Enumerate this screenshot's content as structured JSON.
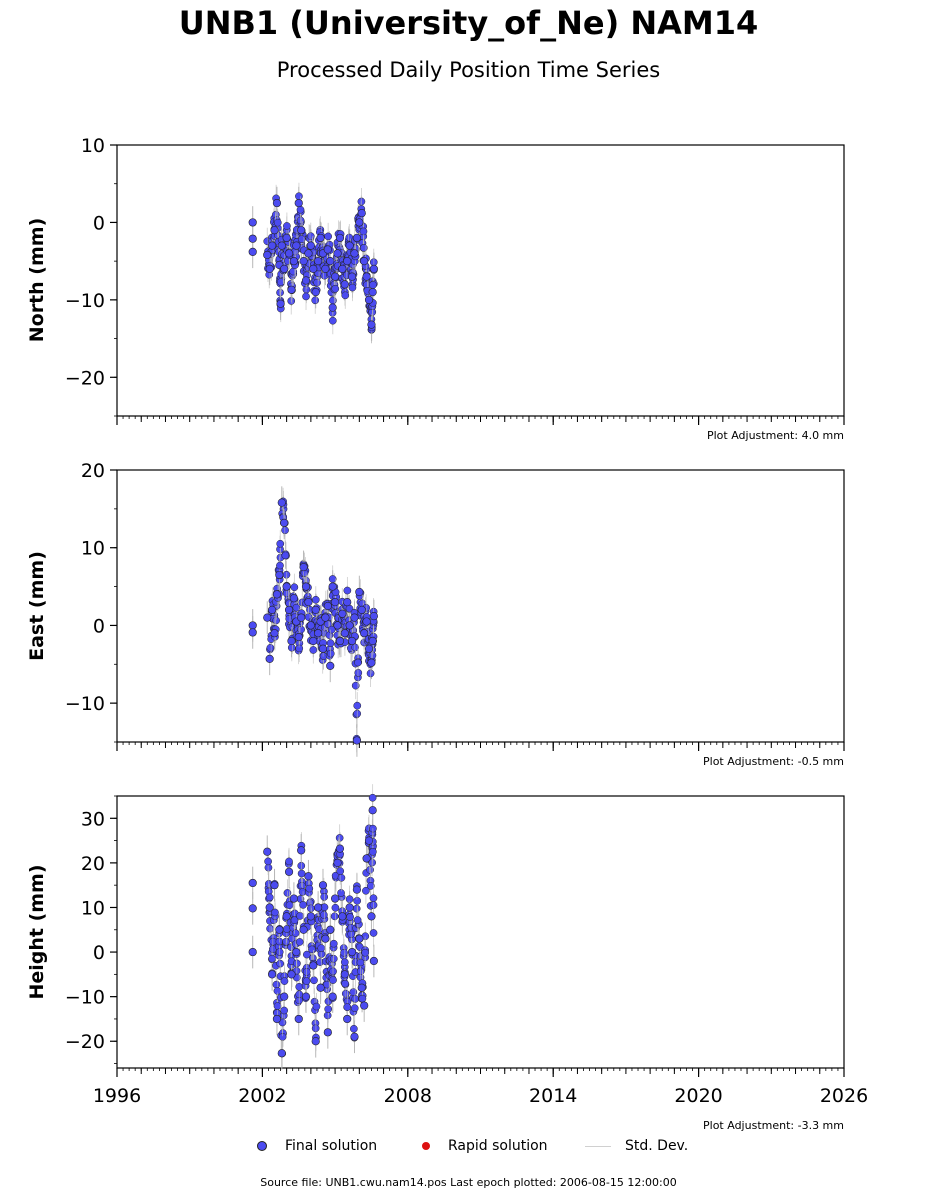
{
  "title": "UNB1 (University_of_Ne) NAM14",
  "subtitle": "Processed Daily Position Time Series",
  "footer": "Source file: UNB1.cwu.nam14.pos  Last epoch plotted: 2006-08-15 12:00:00",
  "legend": {
    "final": "Final solution",
    "rapid": "Rapid solution",
    "std": "Std. Dev."
  },
  "colors": {
    "final": "#4b4bf0",
    "rapid": "#dd1111",
    "std": "#b8b8b8"
  },
  "panels": [
    {
      "ylabel": "North (mm)",
      "adjustment": "Plot Adjustment: 4.0 mm"
    },
    {
      "ylabel": "East (mm)",
      "adjustment": "Plot Adjustment: -0.5 mm"
    },
    {
      "ylabel": "Height (mm)",
      "adjustment": "Plot Adjustment: -3.3 mm"
    }
  ],
  "chart_data": [
    {
      "type": "scatter",
      "ylabel": "North (mm)",
      "xlim": [
        1996,
        2026
      ],
      "ylim": [
        -25,
        10
      ],
      "xticks": [
        1996,
        2002,
        2008,
        2014,
        2020,
        2026
      ],
      "yticks": [
        -20,
        -10,
        0,
        10
      ],
      "series": [
        {
          "name": "Final solution",
          "x": [
            2001.6,
            2001.6,
            2001.6,
            2002.2,
            2002.3,
            2002.4,
            2002.5,
            2002.6,
            2002.7,
            2002.75,
            2002.8,
            2002.9,
            2003.0,
            2003.1,
            2003.2,
            2003.3,
            2003.4,
            2003.5,
            2003.6,
            2003.7,
            2003.8,
            2003.9,
            2004.0,
            2004.1,
            2004.2,
            2004.3,
            2004.4,
            2004.5,
            2004.6,
            2004.7,
            2004.8,
            2004.9,
            2005.0,
            2005.1,
            2005.2,
            2005.3,
            2005.4,
            2005.5,
            2005.6,
            2005.7,
            2005.8,
            2005.9,
            2006.0,
            2006.1,
            2006.2,
            2006.3,
            2006.4,
            2006.5,
            2006.55,
            2006.6
          ],
          "y": [
            0.0,
            -2.1,
            -3.8,
            -4.2,
            -6.0,
            -3.0,
            -1.0,
            2.5,
            -5.5,
            -10.5,
            -3.0,
            -6.0,
            -2.0,
            -4.0,
            -8.7,
            -5.0,
            -3.0,
            2.5,
            -1.0,
            -5.0,
            -7.5,
            -4.0,
            -3.0,
            -6.0,
            -9.0,
            -5.0,
            -2.0,
            -4.0,
            -6.0,
            -3.5,
            -5.0,
            -11.0,
            -7.0,
            -4.0,
            -2.0,
            -6.0,
            -8.0,
            -5.0,
            -3.0,
            -7.0,
            -4.0,
            -2.0,
            0.0,
            1.2,
            -5.0,
            -7.0,
            -10.0,
            -13.2,
            -9.0,
            -6.0
          ]
        }
      ]
    },
    {
      "type": "scatter",
      "ylabel": "East (mm)",
      "xlim": [
        1996,
        2026
      ],
      "ylim": [
        -15,
        20
      ],
      "xticks": [
        1996,
        2002,
        2008,
        2014,
        2020,
        2026
      ],
      "yticks": [
        -10,
        0,
        10,
        20
      ],
      "series": [
        {
          "name": "Final solution",
          "x": [
            2001.6,
            2001.6,
            2002.2,
            2002.3,
            2002.4,
            2002.5,
            2002.6,
            2002.7,
            2002.8,
            2002.9,
            2003.0,
            2003.1,
            2003.2,
            2003.3,
            2003.4,
            2003.5,
            2003.6,
            2003.7,
            2003.8,
            2003.9,
            2004.0,
            2004.1,
            2004.2,
            2004.3,
            2004.4,
            2004.5,
            2004.6,
            2004.7,
            2004.8,
            2004.9,
            2005.0,
            2005.1,
            2005.2,
            2005.3,
            2005.4,
            2005.5,
            2005.6,
            2005.7,
            2005.8,
            2005.9,
            2006.0,
            2006.1,
            2006.2,
            2006.3,
            2006.4,
            2006.5,
            2006.55,
            2006.6
          ],
          "y": [
            0.0,
            -0.9,
            1.0,
            -4.3,
            2.0,
            -1.0,
            4.0,
            6.5,
            15.8,
            13.2,
            5.0,
            2.0,
            -2.0,
            3.5,
            0.5,
            -1.5,
            1.0,
            7.5,
            5.0,
            3.0,
            0.0,
            -2.0,
            2.0,
            -1.0,
            0.5,
            -3.0,
            1.0,
            2.5,
            -5.2,
            5.0,
            3.0,
            0.0,
            -2.0,
            1.5,
            -1.0,
            3.0,
            0.0,
            -2.0,
            1.0,
            -14.8,
            4.3,
            2.0,
            -1.0,
            0.5,
            -3.0,
            -4.8,
            -2.0,
            1.2
          ]
        }
      ]
    },
    {
      "type": "scatter",
      "ylabel": "Height (mm)",
      "xlim": [
        1996,
        2026
      ],
      "ylim": [
        -26,
        35
      ],
      "xticks": [
        1996,
        2002,
        2008,
        2014,
        2020,
        2026
      ],
      "yticks": [
        -20,
        -10,
        0,
        10,
        20,
        30
      ],
      "series": [
        {
          "name": "Final solution",
          "x": [
            2001.6,
            2001.6,
            2001.6,
            2002.2,
            2002.3,
            2002.4,
            2002.5,
            2002.6,
            2002.7,
            2002.8,
            2002.9,
            2003.0,
            2003.1,
            2003.2,
            2003.3,
            2003.4,
            2003.5,
            2003.6,
            2003.7,
            2003.8,
            2003.9,
            2004.0,
            2004.1,
            2004.2,
            2004.3,
            2004.4,
            2004.5,
            2004.6,
            2004.7,
            2004.8,
            2004.9,
            2005.0,
            2005.1,
            2005.2,
            2005.3,
            2005.4,
            2005.5,
            2005.6,
            2005.7,
            2005.8,
            2005.9,
            2006.0,
            2006.1,
            2006.2,
            2006.3,
            2006.4,
            2006.5,
            2006.55,
            2006.6
          ],
          "y": [
            15.5,
            9.8,
            0.0,
            22.5,
            10.0,
            -5.0,
            15.0,
            -15.0,
            5.0,
            -22.7,
            -10.0,
            8.0,
            18.0,
            -5.0,
            12.0,
            0.0,
            -15.0,
            22.8,
            5.0,
            -10.0,
            17.0,
            8.0,
            -3.0,
            -20.0,
            10.0,
            -8.0,
            15.0,
            3.0,
            -18.0,
            5.0,
            -10.0,
            12.0,
            20.0,
            23.2,
            8.0,
            -5.0,
            -15.0,
            10.0,
            0.0,
            -19.0,
            14.0,
            3.0,
            -8.0,
            -12.0,
            21.0,
            25.0,
            8.0,
            31.8,
            -2.0
          ]
        }
      ]
    }
  ]
}
